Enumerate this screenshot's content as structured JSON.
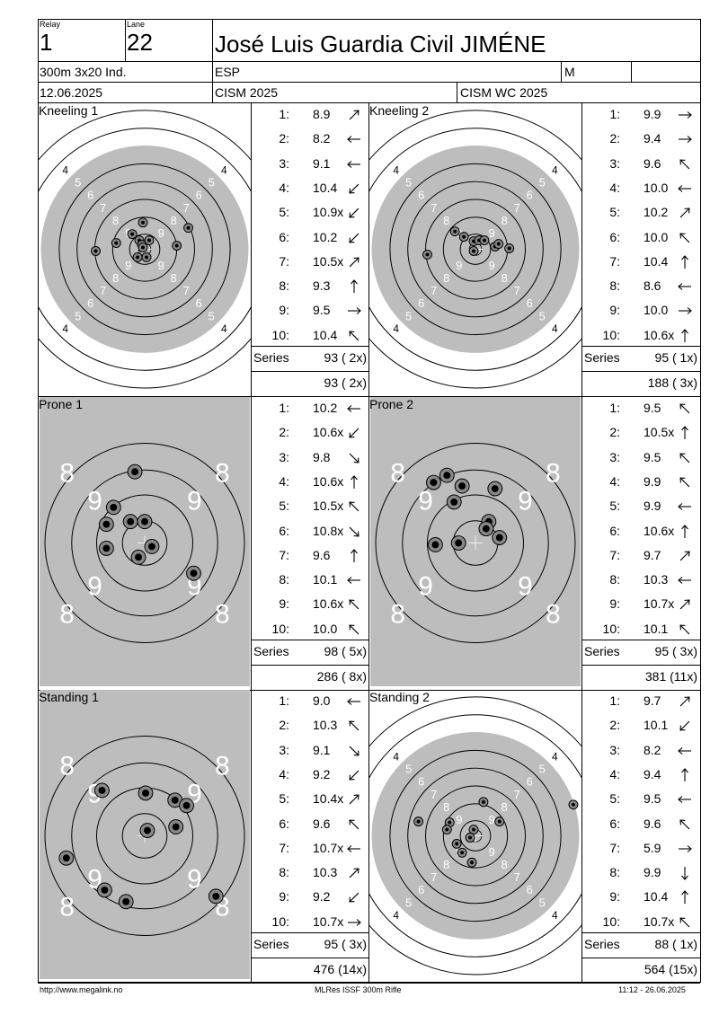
{
  "header": {
    "relay_label": "Relay",
    "relay": "1",
    "lane_label": "Lane",
    "lane": "22",
    "name": "José Luis Guardia Civil JIMÉNE",
    "event": "300m 3x20 Ind.",
    "nation": "ESP",
    "gender": "M",
    "date": "12.06.2025",
    "competition": "CISM 2025",
    "championship": "CISM WC 2025"
  },
  "series_label": "Series",
  "panels": [
    {
      "title": "Kneeling 1",
      "type": "kneeling",
      "shots": [
        {
          "n": "1:",
          "v": "8.9",
          "dir": "ne"
        },
        {
          "n": "2:",
          "v": "8.2",
          "dir": "w"
        },
        {
          "n": "3:",
          "v": "9.1",
          "dir": "w"
        },
        {
          "n": "4:",
          "v": "10.4",
          "dir": "sw"
        },
        {
          "n": "5:",
          "v": "10.9x",
          "dir": "sw"
        },
        {
          "n": "6:",
          "v": "10.2",
          "dir": "sw"
        },
        {
          "n": "7:",
          "v": "10.5x",
          "dir": "ne"
        },
        {
          "n": "8:",
          "v": "9.3",
          "dir": "n"
        },
        {
          "n": "9:",
          "v": "9.5",
          "dir": "e"
        },
        {
          "n": "10:",
          "v": "10.4",
          "dir": "nw"
        }
      ],
      "series": "93 ( 2x)",
      "total": "93 ( 2x)",
      "impacts": [
        [
          -2,
          -30
        ],
        [
          -14,
          -17
        ],
        [
          5,
          -10
        ],
        [
          -6,
          -10
        ],
        [
          -3,
          -5
        ],
        [
          -2,
          -2
        ],
        [
          -8,
          9
        ],
        [
          2,
          9
        ],
        [
          36,
          -4
        ],
        [
          49,
          -24
        ],
        [
          -32,
          -7
        ],
        [
          -55,
          2
        ]
      ]
    },
    {
      "title": "Kneeling 2",
      "type": "kneeling",
      "shots": [
        {
          "n": "1:",
          "v": "9.9",
          "dir": "e"
        },
        {
          "n": "2:",
          "v": "9.4",
          "dir": "e"
        },
        {
          "n": "3:",
          "v": "9.6",
          "dir": "nw"
        },
        {
          "n": "4:",
          "v": "10.0",
          "dir": "w"
        },
        {
          "n": "5:",
          "v": "10.2",
          "dir": "ne"
        },
        {
          "n": "6:",
          "v": "10.0",
          "dir": "nw"
        },
        {
          "n": "7:",
          "v": "10.4",
          "dir": "n"
        },
        {
          "n": "8:",
          "v": "8.6",
          "dir": "w"
        },
        {
          "n": "9:",
          "v": "10.0",
          "dir": "e"
        },
        {
          "n": "10:",
          "v": "10.6x",
          "dir": "n"
        }
      ],
      "series": "95 ( 1x)",
      "total": "188 ( 3x)",
      "impacts": [
        [
          -23,
          -20
        ],
        [
          -13,
          -14
        ],
        [
          -2,
          -9
        ],
        [
          4,
          -10
        ],
        [
          10,
          -10
        ],
        [
          22,
          -3
        ],
        [
          26,
          -6
        ],
        [
          38,
          -1
        ],
        [
          -2,
          2
        ],
        [
          -54,
          6
        ]
      ]
    },
    {
      "title": "Prone 1",
      "type": "prone",
      "shots": [
        {
          "n": "1:",
          "v": "10.2",
          "dir": "w"
        },
        {
          "n": "2:",
          "v": "10.6x",
          "dir": "sw"
        },
        {
          "n": "3:",
          "v": "9.8",
          "dir": "se"
        },
        {
          "n": "4:",
          "v": "10.6x",
          "dir": "n"
        },
        {
          "n": "5:",
          "v": "10.5x",
          "dir": "nw"
        },
        {
          "n": "6:",
          "v": "10.8x",
          "dir": "se"
        },
        {
          "n": "7:",
          "v": "9.6",
          "dir": "n"
        },
        {
          "n": "8:",
          "v": "10.1",
          "dir": "w"
        },
        {
          "n": "9:",
          "v": "10.6x",
          "dir": "nw"
        },
        {
          "n": "10:",
          "v": "10.0",
          "dir": "nw"
        }
      ],
      "series": "98 ( 5x)",
      "total": "286 ( 8x)",
      "impacts": [
        [
          -11,
          -80
        ],
        [
          -35,
          -40
        ],
        [
          -43,
          -21
        ],
        [
          -16,
          -24
        ],
        [
          0,
          -24
        ],
        [
          -43,
          6
        ],
        [
          8,
          4
        ],
        [
          -7,
          16
        ],
        [
          55,
          34
        ]
      ]
    },
    {
      "title": "Prone 2",
      "type": "prone",
      "shots": [
        {
          "n": "1:",
          "v": "9.5",
          "dir": "nw"
        },
        {
          "n": "2:",
          "v": "10.5x",
          "dir": "n"
        },
        {
          "n": "3:",
          "v": "9.5",
          "dir": "nw"
        },
        {
          "n": "4:",
          "v": "9.9",
          "dir": "nw"
        },
        {
          "n": "5:",
          "v": "9.9",
          "dir": "w"
        },
        {
          "n": "6:",
          "v": "10.6x",
          "dir": "n"
        },
        {
          "n": "7:",
          "v": "9.7",
          "dir": "ne"
        },
        {
          "n": "8:",
          "v": "10.3",
          "dir": "w"
        },
        {
          "n": "9:",
          "v": "10.7x",
          "dir": "ne"
        },
        {
          "n": "10:",
          "v": "10.1",
          "dir": "nw"
        }
      ],
      "series": "95 ( 3x)",
      "total": "381 (11x)",
      "impacts": [
        [
          -47,
          -68
        ],
        [
          -32,
          -76
        ],
        [
          -15,
          -64
        ],
        [
          -24,
          -46
        ],
        [
          22,
          -61
        ],
        [
          15,
          -24
        ],
        [
          12,
          -16
        ],
        [
          27,
          -6
        ],
        [
          -19,
          0
        ],
        [
          -45,
          2
        ]
      ]
    },
    {
      "title": "Standing 1",
      "type": "prone",
      "shots": [
        {
          "n": "1:",
          "v": "9.0",
          "dir": "w"
        },
        {
          "n": "2:",
          "v": "10.3",
          "dir": "nw"
        },
        {
          "n": "3:",
          "v": "9.1",
          "dir": "se"
        },
        {
          "n": "4:",
          "v": "9.2",
          "dir": "sw"
        },
        {
          "n": "5:",
          "v": "10.4x",
          "dir": "ne"
        },
        {
          "n": "6:",
          "v": "9.6",
          "dir": "nw"
        },
        {
          "n": "7:",
          "v": "10.7x",
          "dir": "w"
        },
        {
          "n": "8:",
          "v": "10.3",
          "dir": "ne"
        },
        {
          "n": "9:",
          "v": "9.2",
          "dir": "sw"
        },
        {
          "n": "10:",
          "v": "10.7x",
          "dir": "e"
        }
      ],
      "series": "95 ( 3x)",
      "total": "476 (14x)",
      "impacts": [
        [
          -48,
          -51
        ],
        [
          1,
          -48
        ],
        [
          34,
          -40
        ],
        [
          47,
          -34
        ],
        [
          35,
          -10
        ],
        [
          3,
          -6
        ],
        [
          -88,
          25
        ],
        [
          -45,
          61
        ],
        [
          -21,
          74
        ],
        [
          80,
          68
        ]
      ]
    },
    {
      "title": "Standing 2",
      "type": "kneeling",
      "shots": [
        {
          "n": "1:",
          "v": "9.7",
          "dir": "ne"
        },
        {
          "n": "2:",
          "v": "10.1",
          "dir": "sw"
        },
        {
          "n": "3:",
          "v": "8.2",
          "dir": "w"
        },
        {
          "n": "4:",
          "v": "9.4",
          "dir": "n"
        },
        {
          "n": "5:",
          "v": "9.5",
          "dir": "w"
        },
        {
          "n": "6:",
          "v": "9.6",
          "dir": "nw"
        },
        {
          "n": "7:",
          "v": "5.9",
          "dir": "e"
        },
        {
          "n": "8:",
          "v": "9.9",
          "dir": "s"
        },
        {
          "n": "9:",
          "v": "10.4",
          "dir": "n"
        },
        {
          "n": "10:",
          "v": "10.7x",
          "dir": "nw"
        }
      ],
      "series": "88 ( 1x)",
      "total": "564 (15x)",
      "impacts": [
        [
          9,
          -38
        ],
        [
          27,
          -16
        ],
        [
          -29,
          -15
        ],
        [
          -32,
          -7
        ],
        [
          -2,
          -7
        ],
        [
          -21,
          9
        ],
        [
          -6,
          2
        ],
        [
          -15,
          19
        ],
        [
          -4,
          30
        ],
        [
          -64,
          -16
        ],
        [
          110,
          -35
        ]
      ]
    }
  ],
  "footer": {
    "left": "http://www.megalink.no",
    "center": "MLRes ISSF 300m Rifle",
    "right": "11:12 - 26.06.2025"
  }
}
